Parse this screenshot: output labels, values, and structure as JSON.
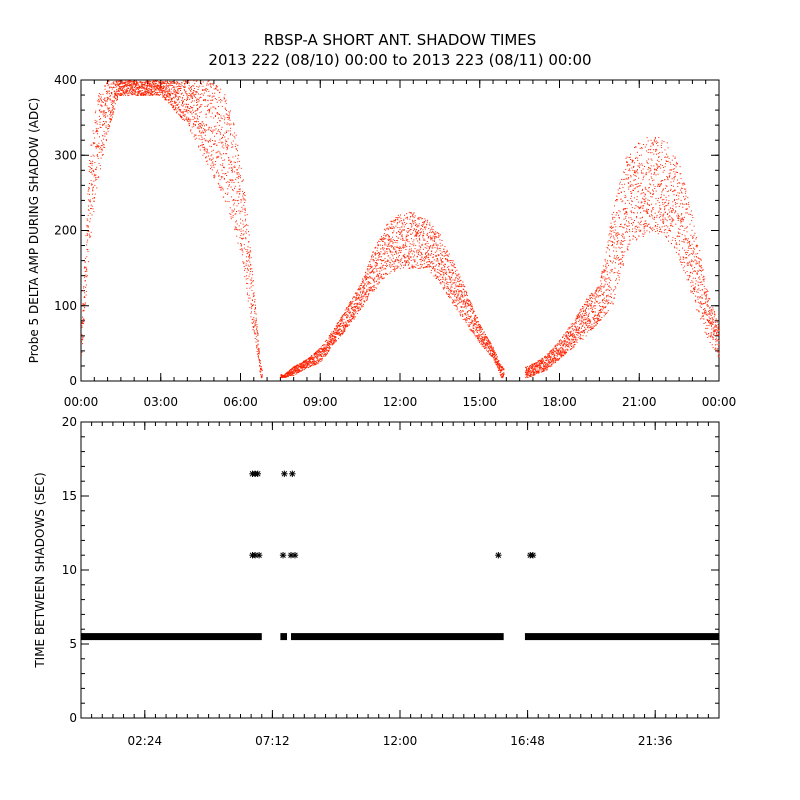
{
  "title": "RBSP-A SHORT ANT. SHADOW TIMES",
  "subtitle": "2013 222 (08/10) 00:00 to 2013 223 (08/11) 00:00",
  "chart_data": [
    {
      "type": "scatter",
      "ylabel": "Probe 5 DELTA AMP DURING SHADOW (ADC)",
      "xlim": [
        0,
        24
      ],
      "ylim": [
        0,
        400
      ],
      "x_ticks": [
        0,
        3,
        6,
        9,
        12,
        15,
        18,
        21,
        24
      ],
      "x_tick_labels": [
        "00:00",
        "03:00",
        "06:00",
        "09:00",
        "12:00",
        "15:00",
        "18:00",
        "21:00",
        "00:00"
      ],
      "y_ticks": [
        0,
        100,
        200,
        300,
        400
      ],
      "y_tick_labels": [
        "0",
        "100",
        "200",
        "300",
        "400"
      ],
      "color": "#ff2200",
      "envelope": {
        "x_hours": [
          0,
          0.3,
          0.6,
          1,
          1.4,
          3,
          4,
          5,
          5.5,
          6,
          6.3,
          6.6,
          6.75,
          7.6,
          8,
          8.5,
          9,
          9.5,
          10,
          10.5,
          11,
          11.5,
          12,
          12.5,
          13,
          13.5,
          14,
          14.5,
          15,
          15.5,
          15.8,
          16.8,
          17.5,
          18,
          18.5,
          19,
          19.5,
          20,
          20.5,
          21,
          21.5,
          22,
          22.5,
          23,
          23.5,
          24
        ],
        "y_low": [
          20,
          180,
          260,
          330,
          380,
          380,
          340,
          270,
          230,
          170,
          100,
          40,
          5,
          5,
          8,
          18,
          25,
          50,
          70,
          95,
          120,
          140,
          150,
          150,
          150,
          130,
          100,
          75,
          50,
          30,
          5,
          5,
          15,
          30,
          45,
          60,
          80,
          100,
          170,
          190,
          200,
          190,
          160,
          110,
          60,
          30
        ],
        "y_high": [
          70,
          300,
          380,
          400,
          400,
          400,
          400,
          400,
          380,
          300,
          200,
          80,
          20,
          8,
          20,
          30,
          45,
          70,
          100,
          130,
          175,
          210,
          225,
          225,
          215,
          195,
          160,
          120,
          75,
          45,
          20,
          20,
          35,
          55,
          80,
          110,
          130,
          230,
          300,
          320,
          330,
          320,
          290,
          220,
          130,
          70
        ]
      },
      "gaps_hours": [
        [
          6.8,
          7.5
        ],
        [
          15.9,
          16.7
        ]
      ]
    },
    {
      "type": "scatter",
      "ylabel": "TIME BETWEEN SHADOWS (SEC)",
      "xlim": [
        0,
        24
      ],
      "ylim": [
        0,
        20
      ],
      "x_ticks": [
        2.4,
        7.2,
        12.0,
        16.8,
        21.6
      ],
      "x_tick_labels": [
        "02:24",
        "07:12",
        "12:00",
        "16:48",
        "21:36"
      ],
      "y_ticks": [
        0,
        5,
        10,
        15,
        20
      ],
      "y_tick_labels": [
        "0",
        "5",
        "10",
        "15",
        "20"
      ],
      "marker": "asterisk",
      "baseline_value": 5.5,
      "baseline_ranges_hours": [
        [
          0,
          6.8
        ],
        [
          7.5,
          7.75
        ],
        [
          7.9,
          15.9
        ],
        [
          16.7,
          24
        ]
      ],
      "points": [
        {
          "x": 6.45,
          "y": 16.5
        },
        {
          "x": 6.55,
          "y": 16.5
        },
        {
          "x": 6.65,
          "y": 16.5
        },
        {
          "x": 7.65,
          "y": 16.5
        },
        {
          "x": 7.95,
          "y": 16.5
        },
        {
          "x": 6.45,
          "y": 11
        },
        {
          "x": 6.55,
          "y": 11
        },
        {
          "x": 6.7,
          "y": 11
        },
        {
          "x": 7.6,
          "y": 11
        },
        {
          "x": 7.9,
          "y": 11
        },
        {
          "x": 8.05,
          "y": 11
        },
        {
          "x": 15.7,
          "y": 11
        },
        {
          "x": 16.9,
          "y": 11
        },
        {
          "x": 17.0,
          "y": 11
        }
      ]
    }
  ]
}
